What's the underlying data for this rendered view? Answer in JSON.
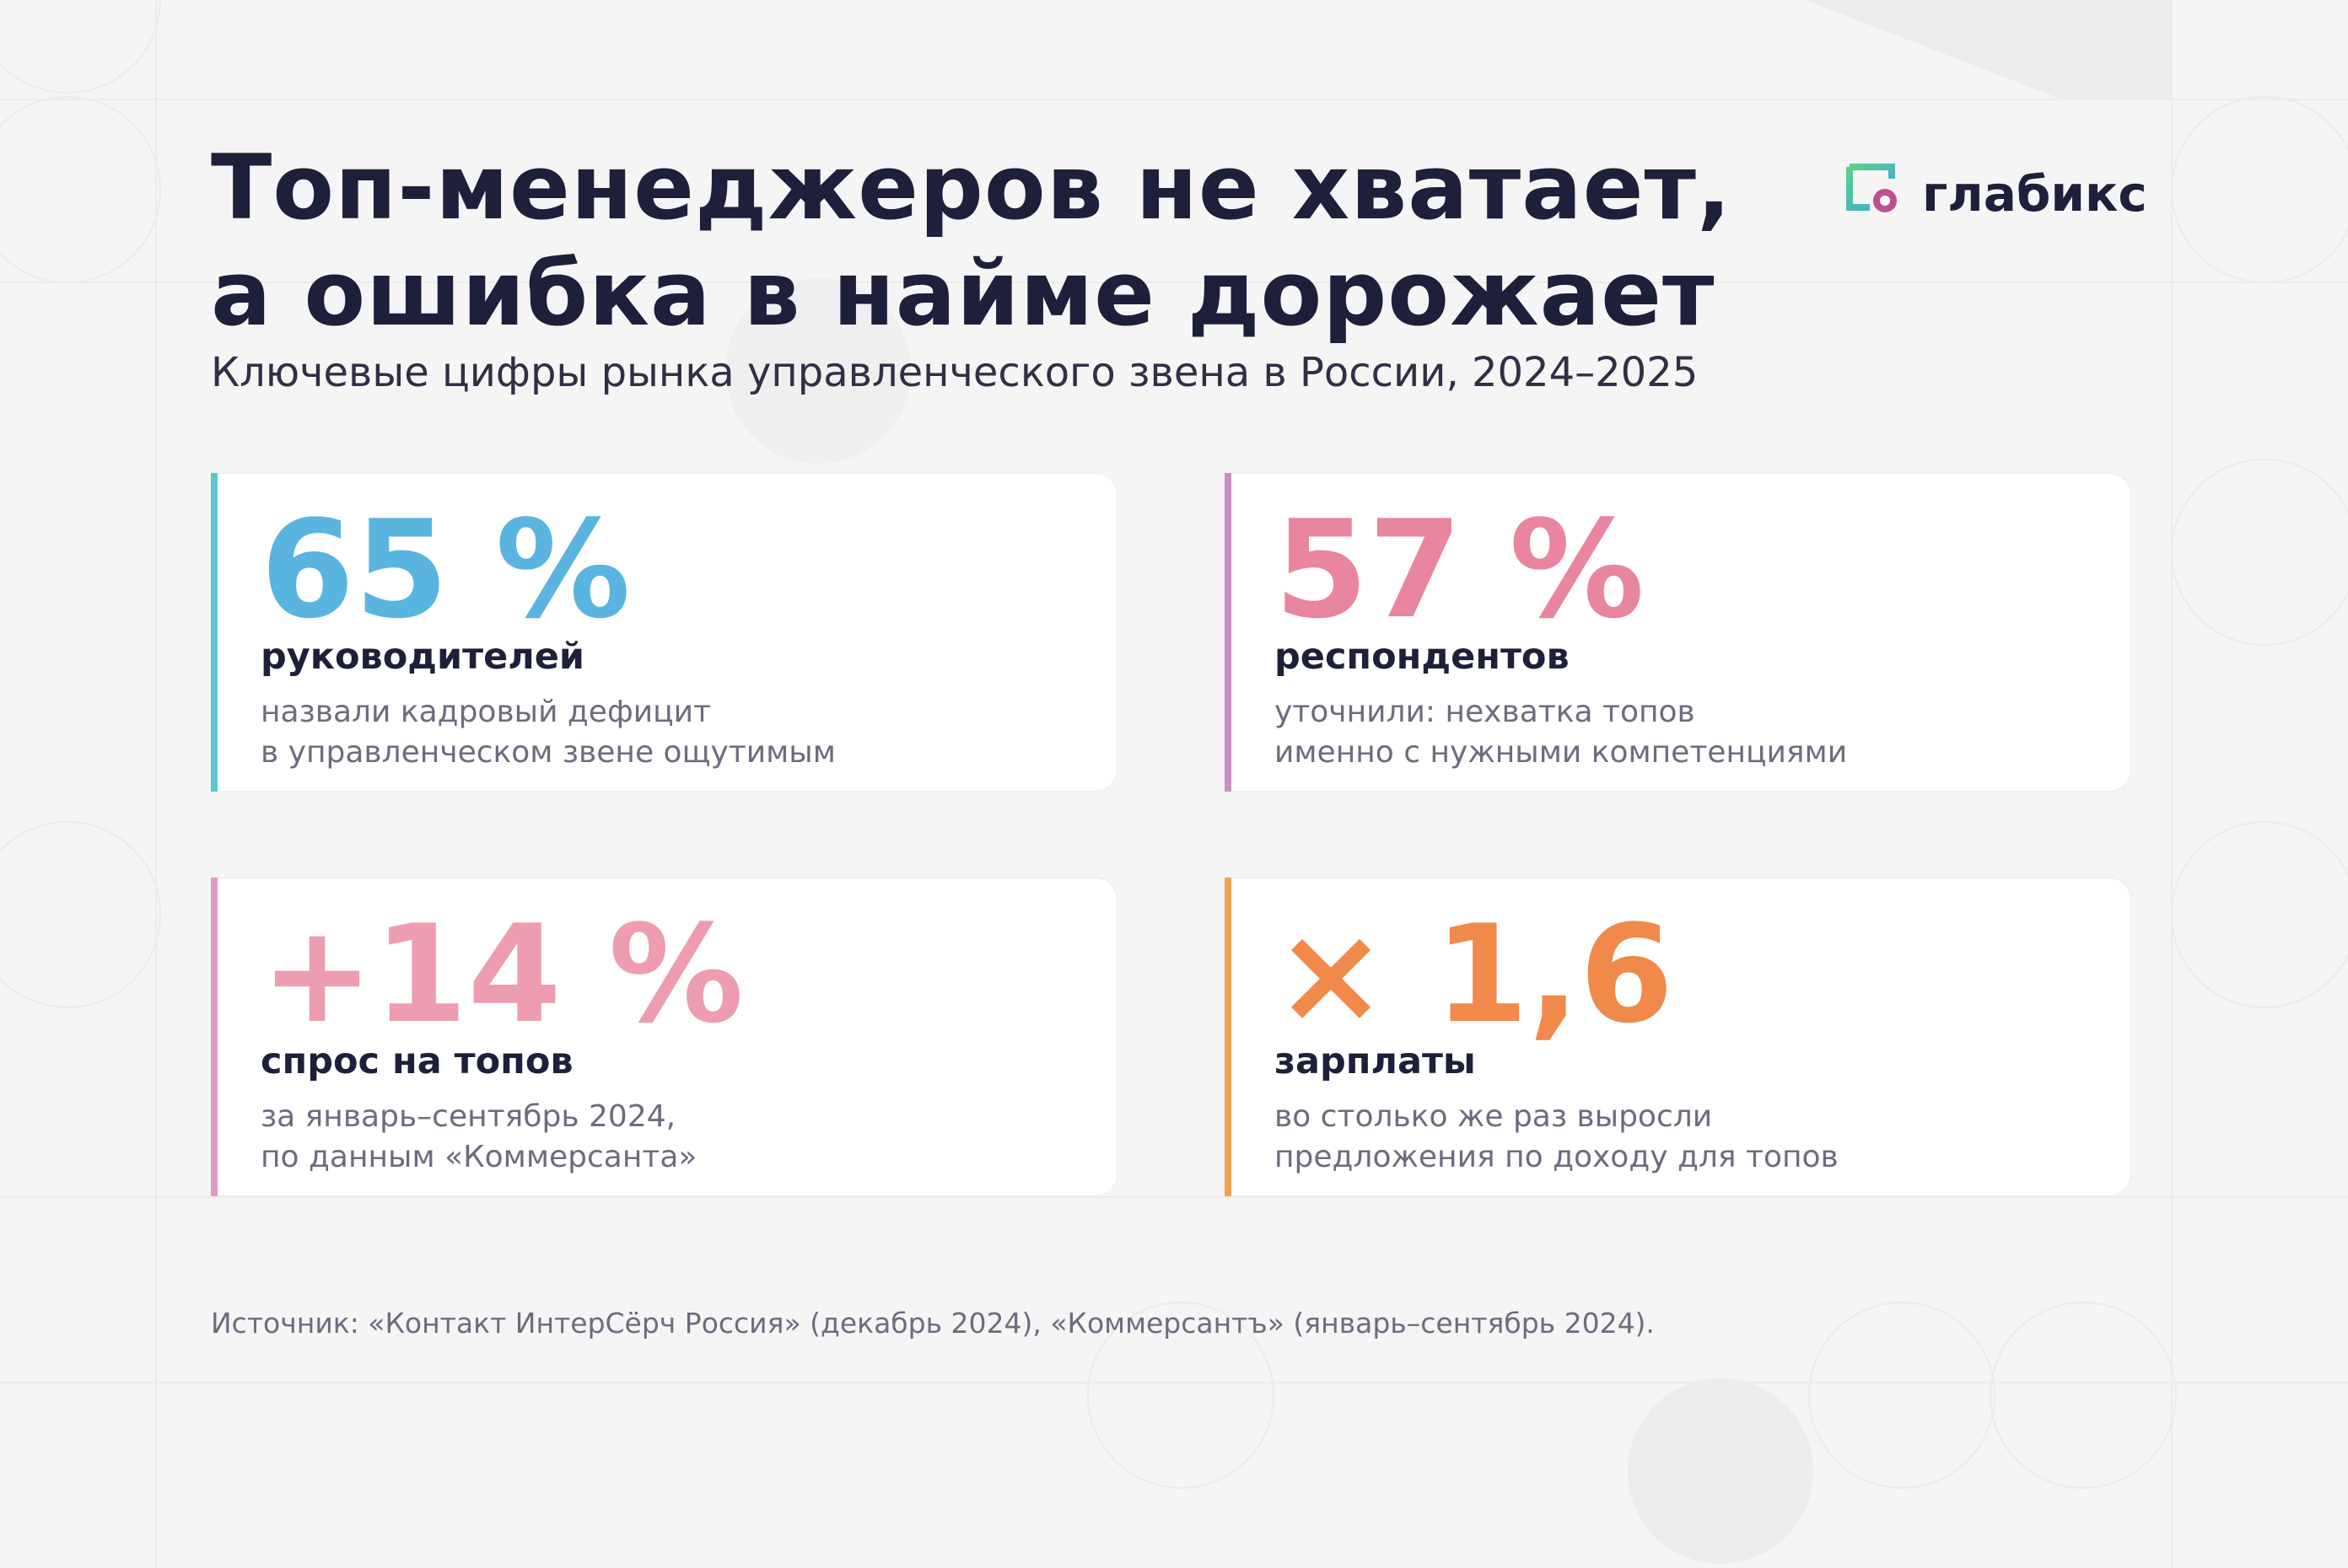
{
  "header": {
    "title": [
      "Топ-менеджеров не хватает,",
      "а ошибка в найме дорожает"
    ],
    "subtitle": "Ключевые цифры рынка управленческого звена в России, 2024–2025",
    "logo": "глабикс"
  },
  "cards": [
    {
      "value": "65 %",
      "label": "руководителей",
      "description": [
        "назвали кадровый дефицит",
        "в управленческом звене ощутимым"
      ]
    },
    {
      "value": "57 %",
      "label": "респондентов",
      "description": [
        "уточнили: нехватка топов",
        "именно с нужными компетенциями"
      ]
    },
    {
      "value": "+14 %",
      "label": "спрос на топов",
      "description": [
        "за январь–сентябрь 2024,",
        "по данным «Коммерсанта»"
      ]
    },
    {
      "value": "× 1,6",
      "label": "зарплаты",
      "description": [
        "во столько же раз выросли",
        "предложения по доходу для топов"
      ]
    }
  ],
  "source": "Источник: «Контакт ИнтерСёрч Россия» (декабрь 2024), «Коммерсантъ» (январь–сентябрь 2024)."
}
